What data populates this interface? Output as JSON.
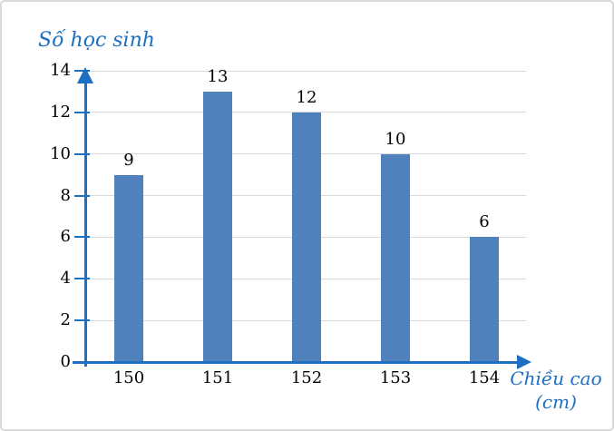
{
  "chart_data": {
    "type": "bar",
    "title": "Số học sinh",
    "x_axis_title_line1": "Chiều cao",
    "x_axis_title_line2": "(cm)",
    "categories": [
      "150",
      "151",
      "152",
      "153",
      "154"
    ],
    "values": [
      9,
      13,
      12,
      10,
      6
    ],
    "yticks": [
      0,
      2,
      4,
      6,
      8,
      10,
      12,
      14
    ],
    "ylim": [
      0,
      14
    ],
    "grid": true,
    "legend_position": "none",
    "colors": {
      "bar": "#4F81BD",
      "axis": "#1C6FC2",
      "grid": "#D9D9D9",
      "text": "#000000",
      "accent_text": "#1C6FC2",
      "frame_border": "#D9D9D9",
      "background": "#FFFFFF"
    }
  }
}
